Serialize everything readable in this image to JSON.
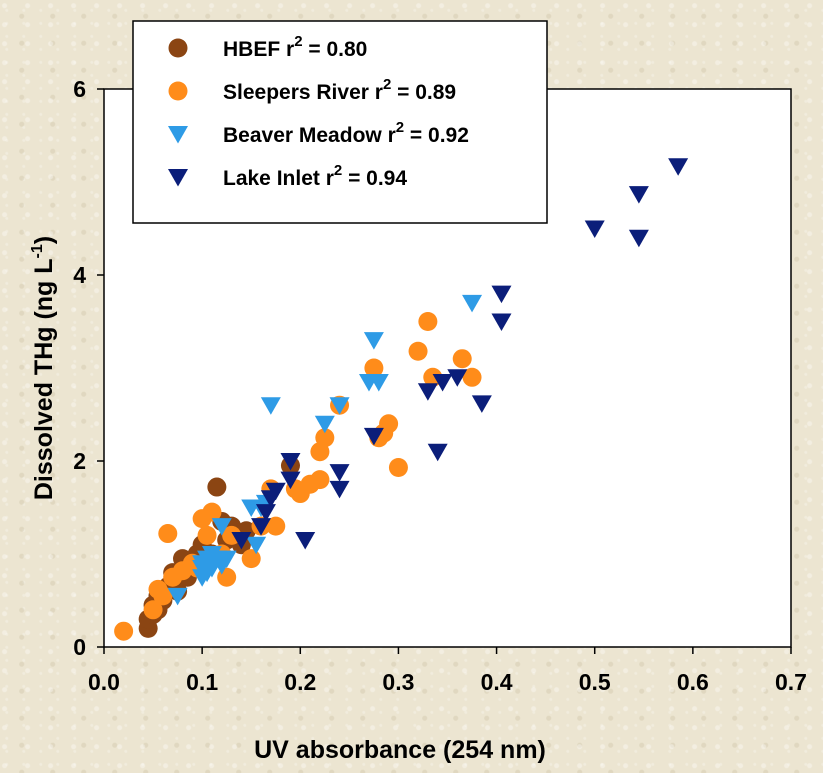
{
  "chart_data": {
    "type": "scatter",
    "xlabel": "UV absorbance (254 nm)",
    "ylabel_main": "Dissolved THg (ng L",
    "ylabel_sup": "-1",
    "ylabel_close": ")",
    "xlim": [
      0.0,
      0.7
    ],
    "ylim": [
      0,
      6
    ],
    "x_ticks": [
      "0.0",
      "0.1",
      "0.2",
      "0.3",
      "0.4",
      "0.5",
      "0.6",
      "0.7"
    ],
    "y_ticks": [
      "0",
      "2",
      "4",
      "6"
    ],
    "grid": false,
    "legend_position": "top-left",
    "series": [
      {
        "name": "HBEF",
        "r2_label": " = 0.80",
        "marker": "circle",
        "color": "#8b4513",
        "points": [
          [
            0.045,
            0.2
          ],
          [
            0.045,
            0.3
          ],
          [
            0.05,
            0.35
          ],
          [
            0.05,
            0.45
          ],
          [
            0.055,
            0.4
          ],
          [
            0.06,
            0.5
          ],
          [
            0.06,
            0.6
          ],
          [
            0.065,
            0.65
          ],
          [
            0.07,
            0.7
          ],
          [
            0.07,
            0.8
          ],
          [
            0.075,
            0.6
          ],
          [
            0.08,
            0.95
          ],
          [
            0.085,
            0.75
          ],
          [
            0.09,
            0.9
          ],
          [
            0.095,
            1.0
          ],
          [
            0.1,
            1.1
          ],
          [
            0.11,
            1.0
          ],
          [
            0.115,
            1.72
          ],
          [
            0.12,
            1.35
          ],
          [
            0.125,
            1.15
          ],
          [
            0.13,
            1.3
          ],
          [
            0.14,
            1.1
          ],
          [
            0.145,
            1.25
          ],
          [
            0.19,
            1.95
          ],
          [
            0.055,
            0.55
          ]
        ]
      },
      {
        "name": "Sleepers River",
        "r2_label": " = 0.89",
        "marker": "circle",
        "color": "#ff8c1a",
        "points": [
          [
            0.02,
            0.17
          ],
          [
            0.05,
            0.4
          ],
          [
            0.055,
            0.62
          ],
          [
            0.06,
            0.55
          ],
          [
            0.065,
            1.22
          ],
          [
            0.07,
            0.75
          ],
          [
            0.08,
            0.82
          ],
          [
            0.09,
            0.9
          ],
          [
            0.095,
            0.85
          ],
          [
            0.1,
            1.38
          ],
          [
            0.105,
            1.2
          ],
          [
            0.11,
            1.45
          ],
          [
            0.12,
            1.0
          ],
          [
            0.125,
            0.75
          ],
          [
            0.13,
            1.2
          ],
          [
            0.15,
            0.95
          ],
          [
            0.16,
            1.3
          ],
          [
            0.17,
            1.7
          ],
          [
            0.175,
            1.3
          ],
          [
            0.2,
            1.65
          ],
          [
            0.21,
            1.75
          ],
          [
            0.22,
            1.8
          ],
          [
            0.22,
            2.1
          ],
          [
            0.225,
            2.25
          ],
          [
            0.24,
            2.6
          ],
          [
            0.275,
            3.0
          ],
          [
            0.28,
            2.25
          ],
          [
            0.285,
            2.3
          ],
          [
            0.29,
            2.4
          ],
          [
            0.3,
            1.93
          ],
          [
            0.32,
            3.18
          ],
          [
            0.33,
            3.5
          ],
          [
            0.335,
            2.9
          ],
          [
            0.365,
            3.1
          ],
          [
            0.375,
            2.9
          ],
          [
            0.195,
            1.7
          ],
          [
            0.11,
            0.95
          ]
        ]
      },
      {
        "name": "Beaver Meadow",
        "r2_label": " = 0.92",
        "marker": "triangle-down",
        "color": "#2e9be6",
        "points": [
          [
            0.075,
            0.55
          ],
          [
            0.1,
            0.75
          ],
          [
            0.1,
            0.9
          ],
          [
            0.105,
            0.8
          ],
          [
            0.11,
            1.0
          ],
          [
            0.11,
            0.85
          ],
          [
            0.115,
            0.95
          ],
          [
            0.12,
            1.3
          ],
          [
            0.12,
            0.88
          ],
          [
            0.125,
            0.95
          ],
          [
            0.15,
            1.5
          ],
          [
            0.155,
            1.1
          ],
          [
            0.16,
            1.5
          ],
          [
            0.165,
            1.55
          ],
          [
            0.17,
            2.6
          ],
          [
            0.225,
            2.4
          ],
          [
            0.24,
            2.6
          ],
          [
            0.27,
            2.85
          ],
          [
            0.275,
            3.3
          ],
          [
            0.28,
            2.85
          ],
          [
            0.375,
            3.7
          ],
          [
            0.1,
            0.85
          ],
          [
            0.105,
            0.95
          ]
        ]
      },
      {
        "name": "Lake Inlet",
        "r2_label": " = 0.94",
        "marker": "triangle-down",
        "color": "#0b1e7a",
        "points": [
          [
            0.14,
            1.15
          ],
          [
            0.16,
            1.3
          ],
          [
            0.165,
            1.45
          ],
          [
            0.17,
            1.6
          ],
          [
            0.175,
            1.68
          ],
          [
            0.19,
            2.0
          ],
          [
            0.19,
            1.8
          ],
          [
            0.205,
            1.15
          ],
          [
            0.24,
            1.88
          ],
          [
            0.24,
            1.7
          ],
          [
            0.275,
            2.27
          ],
          [
            0.33,
            2.75
          ],
          [
            0.34,
            2.1
          ],
          [
            0.345,
            2.85
          ],
          [
            0.36,
            2.9
          ],
          [
            0.385,
            2.62
          ],
          [
            0.405,
            3.5
          ],
          [
            0.405,
            3.8
          ],
          [
            0.5,
            4.5
          ],
          [
            0.545,
            4.4
          ],
          [
            0.545,
            4.87
          ],
          [
            0.585,
            5.17
          ]
        ]
      }
    ]
  }
}
